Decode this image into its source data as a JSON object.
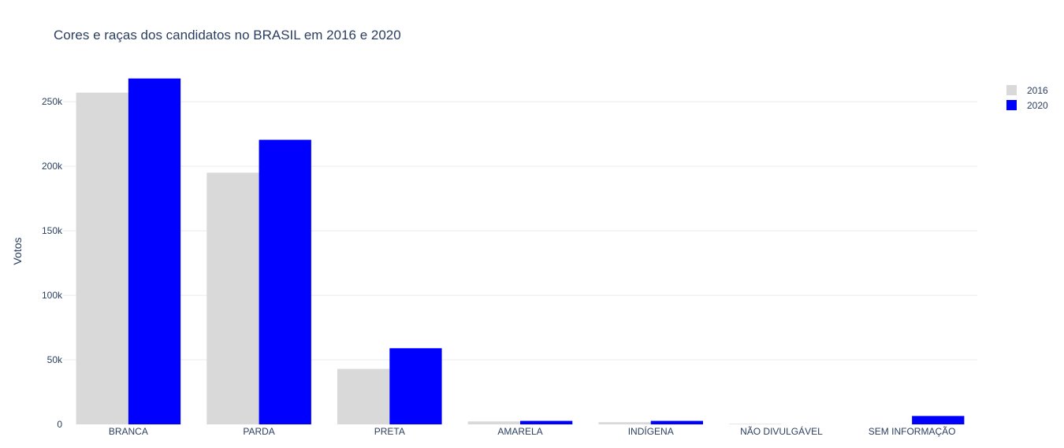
{
  "chart_data": {
    "type": "bar",
    "title": "Cores e raças dos candidatos no BRASIL em 2016 e 2020",
    "xlabel": "",
    "ylabel": "Votos",
    "categories": [
      "BRANCA",
      "PARDA",
      "PRETA",
      "AMARELA",
      "INDÍGENA",
      "NÃO DIVULGÁVEL",
      "SEM INFORMAÇÃO"
    ],
    "series": [
      {
        "name": "2016",
        "color": "#d9d9d9",
        "values": [
          257000,
          195000,
          43000,
          2300,
          1700,
          400,
          0
        ]
      },
      {
        "name": "2020",
        "color": "#0000ff",
        "values": [
          268000,
          220500,
          59000,
          2700,
          2700,
          0,
          6500
        ]
      }
    ],
    "ylim": [
      0,
      280000
    ],
    "yticks": [
      {
        "value": 0,
        "label": "0"
      },
      {
        "value": 50000,
        "label": "50k"
      },
      {
        "value": 100000,
        "label": "100k"
      },
      {
        "value": 150000,
        "label": "150k"
      },
      {
        "value": 200000,
        "label": "200k"
      },
      {
        "value": 250000,
        "label": "250k"
      }
    ],
    "grid": true,
    "legend_position": "top-right"
  }
}
